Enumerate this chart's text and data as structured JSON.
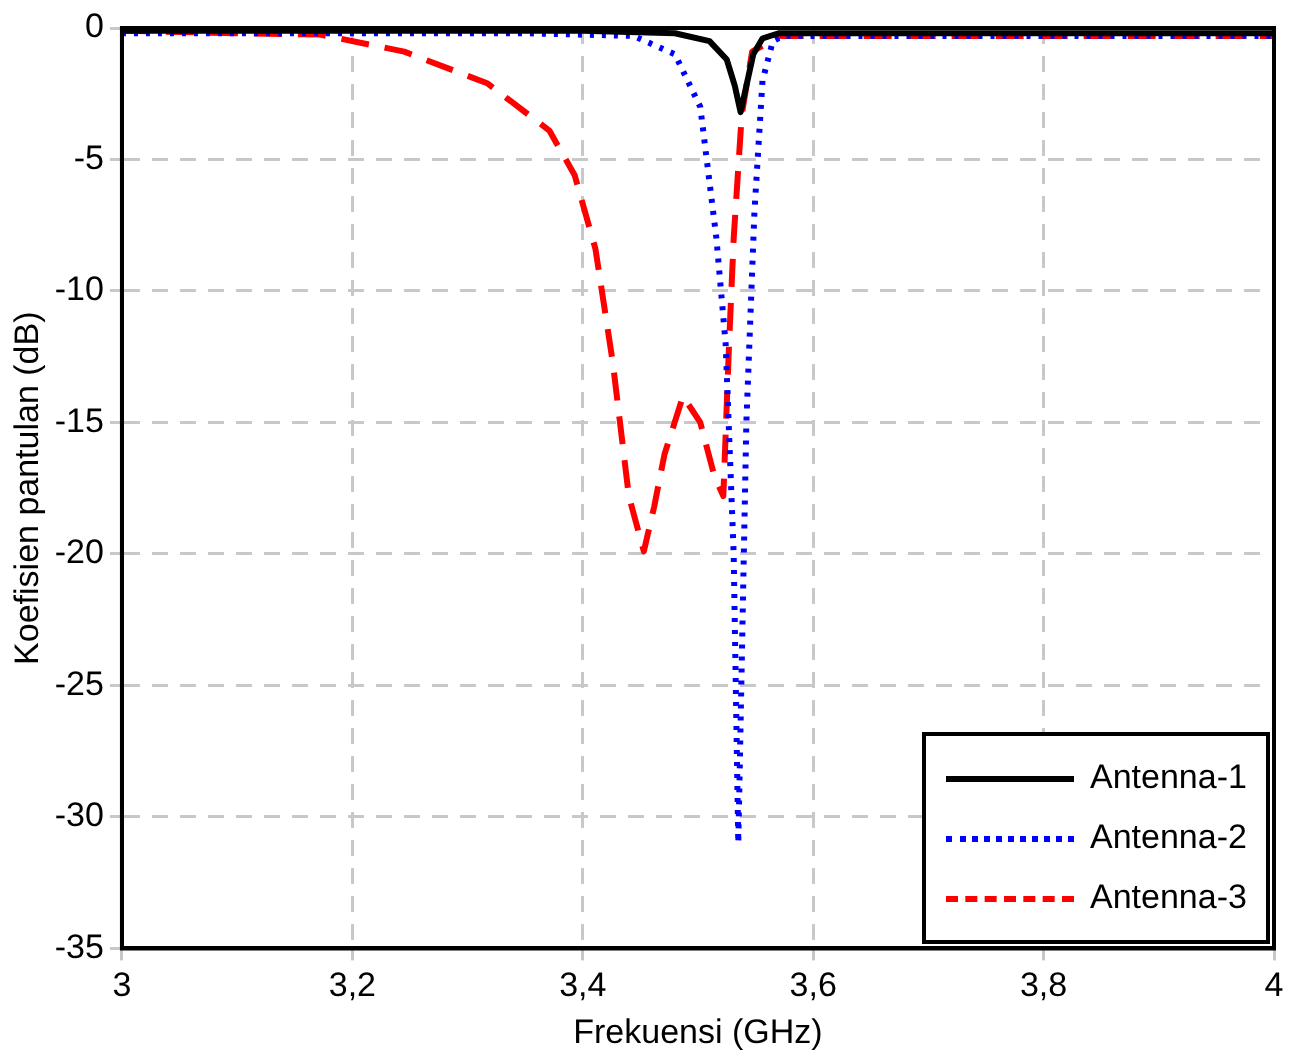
{
  "chart_data": {
    "type": "line",
    "xlabel": "Frekuensi (GHz)",
    "ylabel": "Koefisien pantulan (dB)",
    "xlim": [
      3,
      4
    ],
    "ylim": [
      -35,
      0
    ],
    "xticks": [
      3,
      {
        "value": 3.2,
        "label": "3,2"
      },
      {
        "value": 3.4,
        "label": "3,4"
      },
      {
        "value": 3.6,
        "label": "3,6"
      },
      {
        "value": 3.8,
        "label": "3,8"
      },
      4
    ],
    "yticks": [
      -35,
      -30,
      -25,
      -20,
      -15,
      -10,
      -5,
      0
    ],
    "grid": true,
    "legend": "bottom right",
    "marker": "none",
    "series": [
      {
        "name": "Antenna-1",
        "color": "#000000",
        "line_style": "solid",
        "x": [
          3,
          3.2,
          3.4,
          3.48,
          3.51,
          3.525,
          3.532,
          3.537,
          3.542,
          3.548,
          3.556,
          3.57,
          3.7,
          3.9,
          4
        ],
        "values": [
          -0.1,
          -0.1,
          -0.1,
          -0.2,
          -0.5,
          -1.2,
          -2.2,
          -3.2,
          -2.2,
          -1,
          -0.4,
          -0.2,
          -0.2,
          -0.2,
          -0.2
        ]
      },
      {
        "name": "Antenna-2",
        "color": "#0000ff",
        "line_style": "dotted",
        "x": [
          3,
          3.2,
          3.35,
          3.444,
          3.48,
          3.502,
          3.516,
          3.524,
          3.531,
          3.535,
          3.542,
          3.549,
          3.556,
          3.565,
          3.574,
          3.7,
          3.9,
          4
        ],
        "values": [
          -0.2,
          -0.2,
          -0.2,
          -0.3,
          -1,
          -3,
          -8,
          -12,
          -20,
          -31,
          -15,
          -7,
          -2,
          -0.5,
          -0.3,
          -0.3,
          -0.3,
          -0.3
        ]
      },
      {
        "name": "Antenna-3",
        "color": "#ff0000",
        "line_style": "dashed",
        "x": [
          3,
          3.1,
          3.172,
          3.245,
          3.317,
          3.371,
          3.393,
          3.411,
          3.426,
          3.44,
          3.453,
          3.462,
          3.471,
          3.487,
          3.502,
          3.514,
          3.522,
          3.527,
          3.531,
          3.538,
          3.547,
          3.571,
          3.7,
          3.9,
          4
        ],
        "values": [
          -0.1,
          -0.2,
          -0.25,
          -0.9,
          -2.1,
          -3.9,
          -5.6,
          -8.4,
          -12.7,
          -17.8,
          -19.9,
          -18.2,
          -16.2,
          -14,
          -15,
          -17,
          -17.8,
          -12,
          -8,
          -3.3,
          -0.9,
          -0.3,
          -0.3,
          -0.3,
          -0.3
        ]
      }
    ]
  }
}
